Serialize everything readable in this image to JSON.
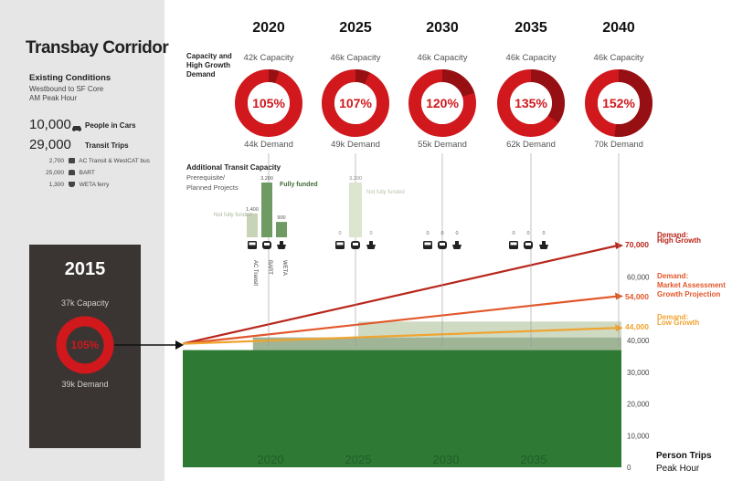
{
  "panel": {
    "title": "Transbay Corridor",
    "subtitle": "Existing Conditions",
    "line1": "Westbound to SF Core",
    "line2": "AM Peak Hour",
    "cars_value": "10,000",
    "cars_label": "People in Cars",
    "transit_value": "29,000",
    "transit_label": "Transit Trips",
    "modes": [
      {
        "value": "2,700",
        "label": "AC Transit & WestCAT bus",
        "icon": "bus-icon"
      },
      {
        "value": "25,000",
        "label": "BART",
        "icon": "train-icon"
      },
      {
        "value": "1,300",
        "label": "WETA ferry",
        "icon": "ferry-icon"
      }
    ],
    "base_year": "2015",
    "base_capacity": "37k Capacity",
    "base_pct": "105%",
    "base_demand": "39k Demand"
  },
  "header": {
    "capacity_label_1": "Capacity and",
    "capacity_label_2": "High Growth",
    "capacity_label_3": "Demand",
    "additional_1": "Additional Transit Capacity",
    "additional_2": "Prerequisite/",
    "additional_3": "Planned Projects"
  },
  "years": [
    {
      "year": "2020",
      "capacity": "42k Capacity",
      "pct": "105%",
      "ratio": 1.05,
      "demand": "44k Demand"
    },
    {
      "year": "2025",
      "capacity": "46k Capacity",
      "pct": "107%",
      "ratio": 1.07,
      "demand": "49k Demand"
    },
    {
      "year": "2030",
      "capacity": "46k Capacity",
      "pct": "120%",
      "ratio": 1.2,
      "demand": "55k Demand"
    },
    {
      "year": "2035",
      "capacity": "46k Capacity",
      "pct": "135%",
      "ratio": 1.35,
      "demand": "62k Demand"
    },
    {
      "year": "2040",
      "capacity": "46k Capacity",
      "pct": "152%",
      "ratio": 1.52,
      "demand": "70k Demand"
    }
  ],
  "projects": {
    "not_fully_funded": "Not fully funded",
    "fully_funded": "Fully funded",
    "mode_names": [
      "AC Transit",
      "BART",
      "WETA"
    ],
    "y2020_notfunded": [
      1400,
      0,
      0
    ],
    "y2020_funded": [
      0,
      3200,
      900
    ],
    "y2020_labels": [
      "1,400",
      "3,200",
      "900"
    ],
    "y2025": [
      0,
      3200,
      0
    ],
    "y2025_labels": [
      "0",
      "3,200",
      "0"
    ],
    "zero": "0"
  },
  "chart_data": {
    "type": "line",
    "x": [
      2015,
      2020,
      2025,
      2030,
      2035,
      2040
    ],
    "xticks": [
      "2020",
      "2025",
      "2030",
      "2035"
    ],
    "ylim": [
      0,
      70000
    ],
    "yticks": [
      "0",
      "10,000",
      "20,000",
      "30,000",
      "40,000",
      "60,000"
    ],
    "ylabel_1": "Person Trips",
    "ylabel_2": "Peak Hour",
    "existing_capacity": 37000,
    "series": [
      {
        "name": "High Growth",
        "start": 39000,
        "end": 70000,
        "end_label": "70,000",
        "label_1": "Demand:",
        "label_2": "High Growth",
        "color": "#b8261b"
      },
      {
        "name": "Market Assessment Growth Projection",
        "start": 39000,
        "end": 54000,
        "end_label": "54,000",
        "label_1": "Demand:",
        "label_2": "Market Assessment",
        "label_3": "Growth Projection",
        "color": "#e2572a"
      },
      {
        "name": "Low Growth",
        "start": 39000,
        "end": 44000,
        "end_label": "44,000",
        "label_1": "Demand:",
        "label_2": "Low Growth",
        "color": "#f0a431"
      }
    ],
    "capacity_bands": [
      {
        "from": 2019,
        "to": 2040,
        "low": 37000,
        "high": 41000,
        "color": "#8fa884"
      },
      {
        "from": 2025,
        "to": 2040,
        "low": 41000,
        "high": 46000,
        "color": "#c7d4b8"
      }
    ]
  },
  "colors": {
    "red": "#d0181d",
    "dark_red": "#8c0f12",
    "green": "#2e7a35",
    "dark_green": "#1f5e26",
    "light_green": "#c7d4b8",
    "panel_bg": "#e6e6e6",
    "box_bg": "#3a3532"
  }
}
